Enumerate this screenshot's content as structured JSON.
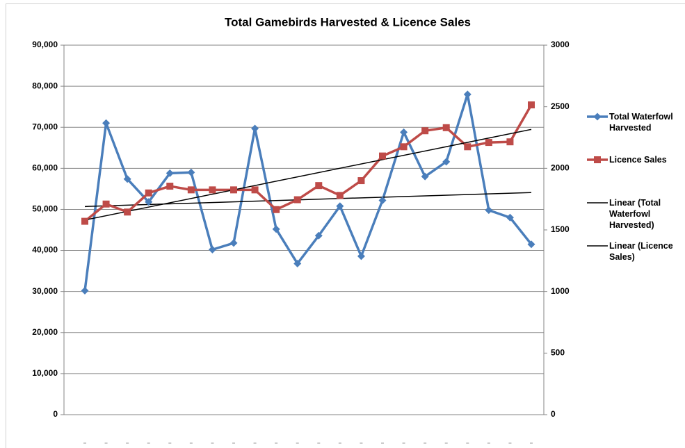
{
  "chart_data": {
    "type": "line",
    "title": "Total Gamebirds Harvested & Licence Sales",
    "categories": [
      null,
      null,
      null,
      null,
      null,
      null,
      null,
      null,
      null,
      null,
      null,
      null,
      null,
      null,
      null,
      null,
      null,
      null,
      null,
      null,
      null,
      null
    ],
    "series": [
      {
        "name": "Total Waterfowl Harvested",
        "color": "#4a7ebb",
        "marker": "diamond",
        "values": [
          30200,
          71000,
          57400,
          51800,
          58800,
          59000,
          40200,
          41800,
          69700,
          45200,
          36800,
          43600,
          50800,
          38600,
          52200,
          68800,
          58000,
          61600,
          78000,
          49800,
          48000,
          41500
        ],
        "trendline": {
          "name": "Linear (Total Waterfowl Harvested)",
          "color": "#000000"
        }
      },
      {
        "name": "Licence Sales",
        "color": "#be4b48",
        "marker": "square",
        "axis": "y2",
        "values": [
          1570,
          1710,
          1645,
          1800,
          1855,
          1825,
          1825,
          1825,
          1825,
          1665,
          1745,
          1860,
          1780,
          1900,
          2100,
          2175,
          2305,
          2330,
          2175,
          2210,
          2215,
          2515
        ],
        "trendline": {
          "name": "Linear (Licence Sales)",
          "color": "#000000"
        }
      }
    ],
    "ylim": [
      0,
      90000
    ],
    "yticks": [
      {
        "value": 0,
        "label": "0"
      },
      {
        "value": 10000,
        "label": "10,000"
      },
      {
        "value": 20000,
        "label": "20,000"
      },
      {
        "value": 30000,
        "label": "30,000"
      },
      {
        "value": 40000,
        "label": "40,000"
      },
      {
        "value": 50000,
        "label": "50,000"
      },
      {
        "value": 60000,
        "label": "60,000"
      },
      {
        "value": 70000,
        "label": "70,000"
      },
      {
        "value": 80000,
        "label": "80,000"
      },
      {
        "value": 90000,
        "label": "90,000"
      }
    ],
    "y2lim": [
      0,
      3000
    ],
    "y2ticks": [
      0,
      500,
      1000,
      1500,
      2000,
      2500,
      3000
    ],
    "grid": true,
    "legend": "right"
  }
}
